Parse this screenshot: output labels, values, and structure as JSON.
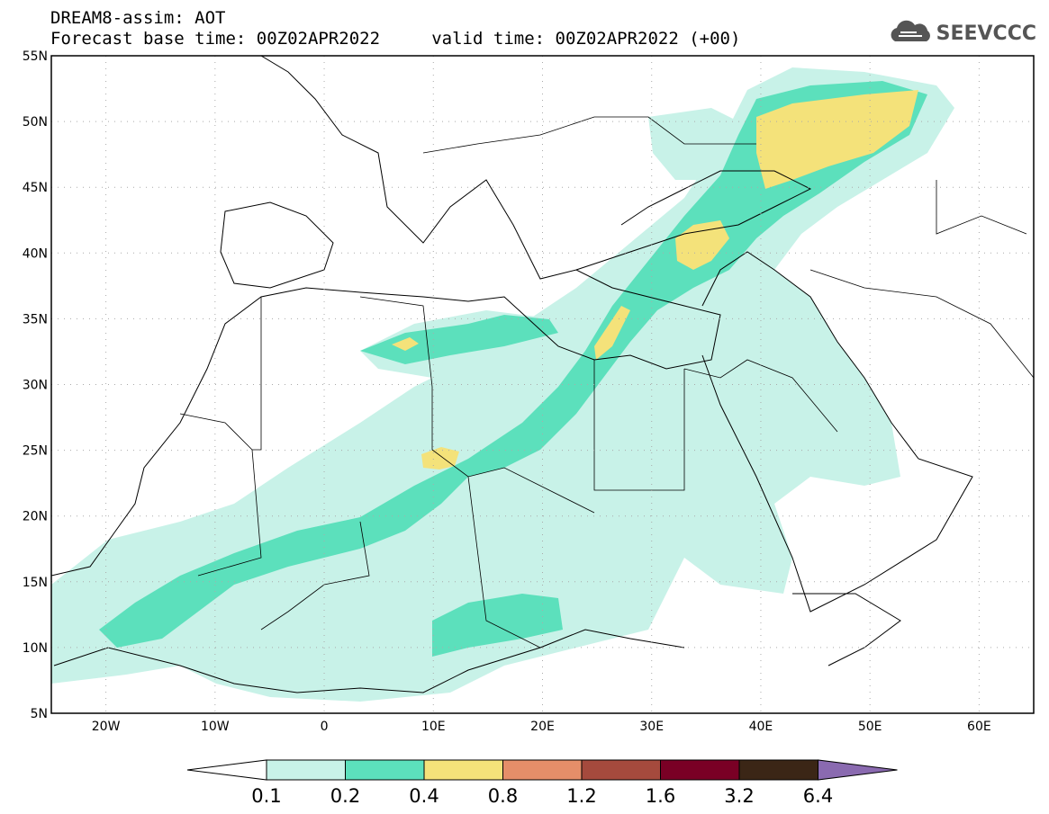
{
  "header": {
    "line1": "DREAM8-assim: AOT",
    "line2": "Forecast base time: 00Z02APR2022     valid time: 00Z02APR2022 (+00)"
  },
  "logo": {
    "text": "SEEVCCC",
    "icon": "cloud-icon"
  },
  "map": {
    "lat_labels": [
      "55N",
      "50N",
      "45N",
      "40N",
      "35N",
      "30N",
      "25N",
      "20N",
      "15N",
      "10N",
      "5N"
    ],
    "lon_labels": [
      "20W",
      "10W",
      "0",
      "10E",
      "20E",
      "30E",
      "40E",
      "50E",
      "60E"
    ],
    "lat_range": [
      5,
      55
    ],
    "lon_range": [
      -25,
      65
    ],
    "grid": "dotted"
  },
  "colorbar": {
    "labels": [
      "0.1",
      "0.2",
      "0.4",
      "0.8",
      "1.2",
      "1.6",
      "3.2",
      "6.4"
    ],
    "colors": [
      "#ffffff",
      "#c8f2e8",
      "#5ce0bc",
      "#f4e27a",
      "#e58e69",
      "#a54a3d",
      "#7a0025",
      "#3b2616",
      "#8a6ab0"
    ]
  },
  "palette": {
    "c1": "#c8f2e8",
    "c2": "#5ce0bc",
    "c3": "#f4e27a"
  }
}
